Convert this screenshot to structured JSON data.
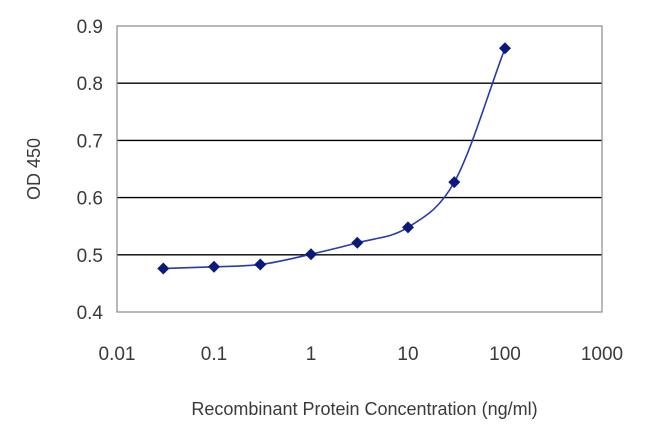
{
  "chart_data": {
    "type": "scatter",
    "title": "",
    "xlabel": "Recombinant Protein Concentration (ng/ml)",
    "ylabel": "OD 450",
    "x_scale": "log",
    "xlim": [
      0.01,
      1000
    ],
    "ylim": [
      0.4,
      0.9
    ],
    "x_ticks": [
      "0.01",
      "0.1",
      "1",
      "10",
      "100",
      "1000"
    ],
    "y_ticks": [
      "0.4",
      "0.5",
      "0.6",
      "0.7",
      "0.8",
      "0.9"
    ],
    "grid": "horizontal",
    "legend": "none",
    "series": [
      {
        "x": [
          0.03,
          0.1,
          0.3,
          1,
          3,
          10,
          30,
          100
        ],
        "y": [
          0.476,
          0.479,
          0.483,
          0.501,
          0.521,
          0.548,
          0.627,
          0.861
        ],
        "marker": "diamond",
        "fitted_curve": true,
        "color": "#0a1a7a"
      }
    ],
    "colors": {
      "marker": "#0a1a7a",
      "curve": "#2a3aa8",
      "grid": "#000000",
      "frame": "#8a8a8a"
    }
  }
}
